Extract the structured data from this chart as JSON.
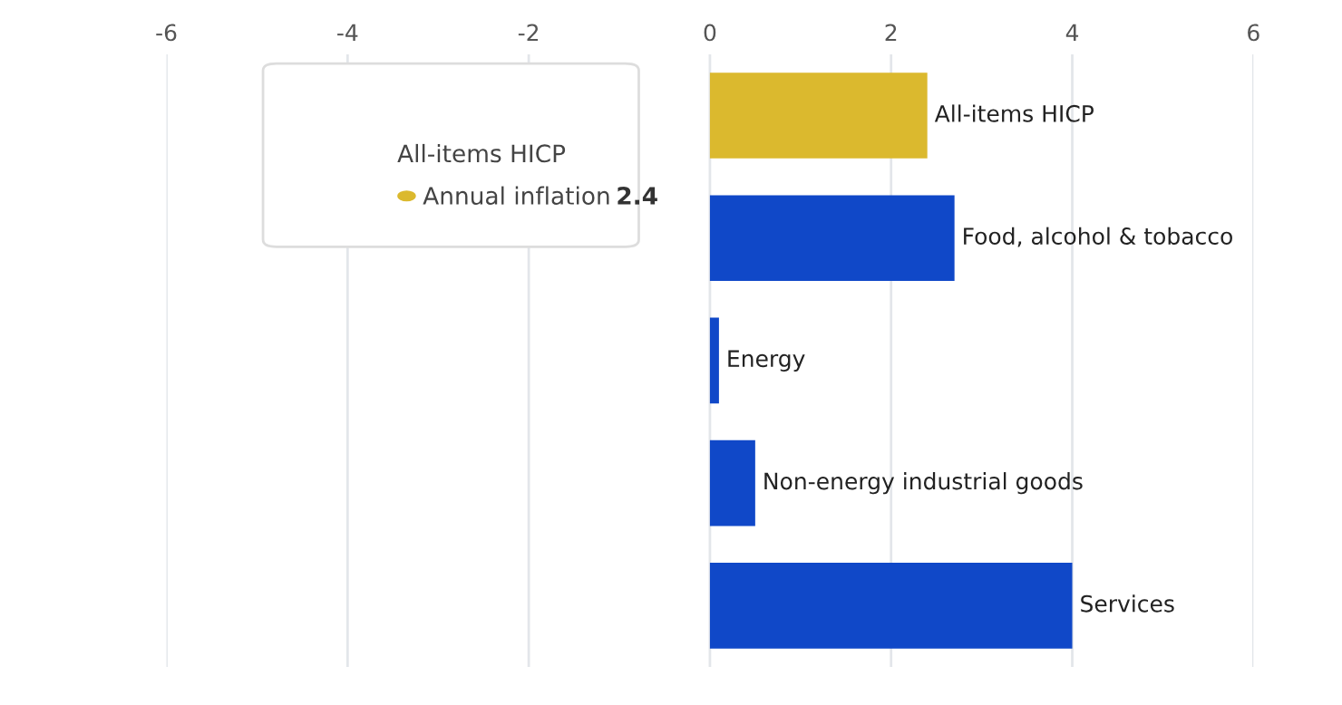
{
  "chart_data": {
    "type": "bar",
    "orientation": "horizontal",
    "categories": [
      "All-items HICP",
      "Food, alcohol & tobacco",
      "Energy",
      "Non-energy industrial goods",
      "Services"
    ],
    "values": [
      2.4,
      2.7,
      0.1,
      0.5,
      4.0
    ],
    "colors": [
      "#dbb92e",
      "#1048c8",
      "#1048c8",
      "#1048c8",
      "#1048c8"
    ],
    "xlim": [
      -6,
      6
    ],
    "xticks": [
      -6,
      -4,
      -2,
      0,
      2,
      4,
      6
    ],
    "grid": "x",
    "tick_labels": "x",
    "annotations": [
      "All-items HICP",
      "Annual inflation",
      "2.4"
    ]
  }
}
